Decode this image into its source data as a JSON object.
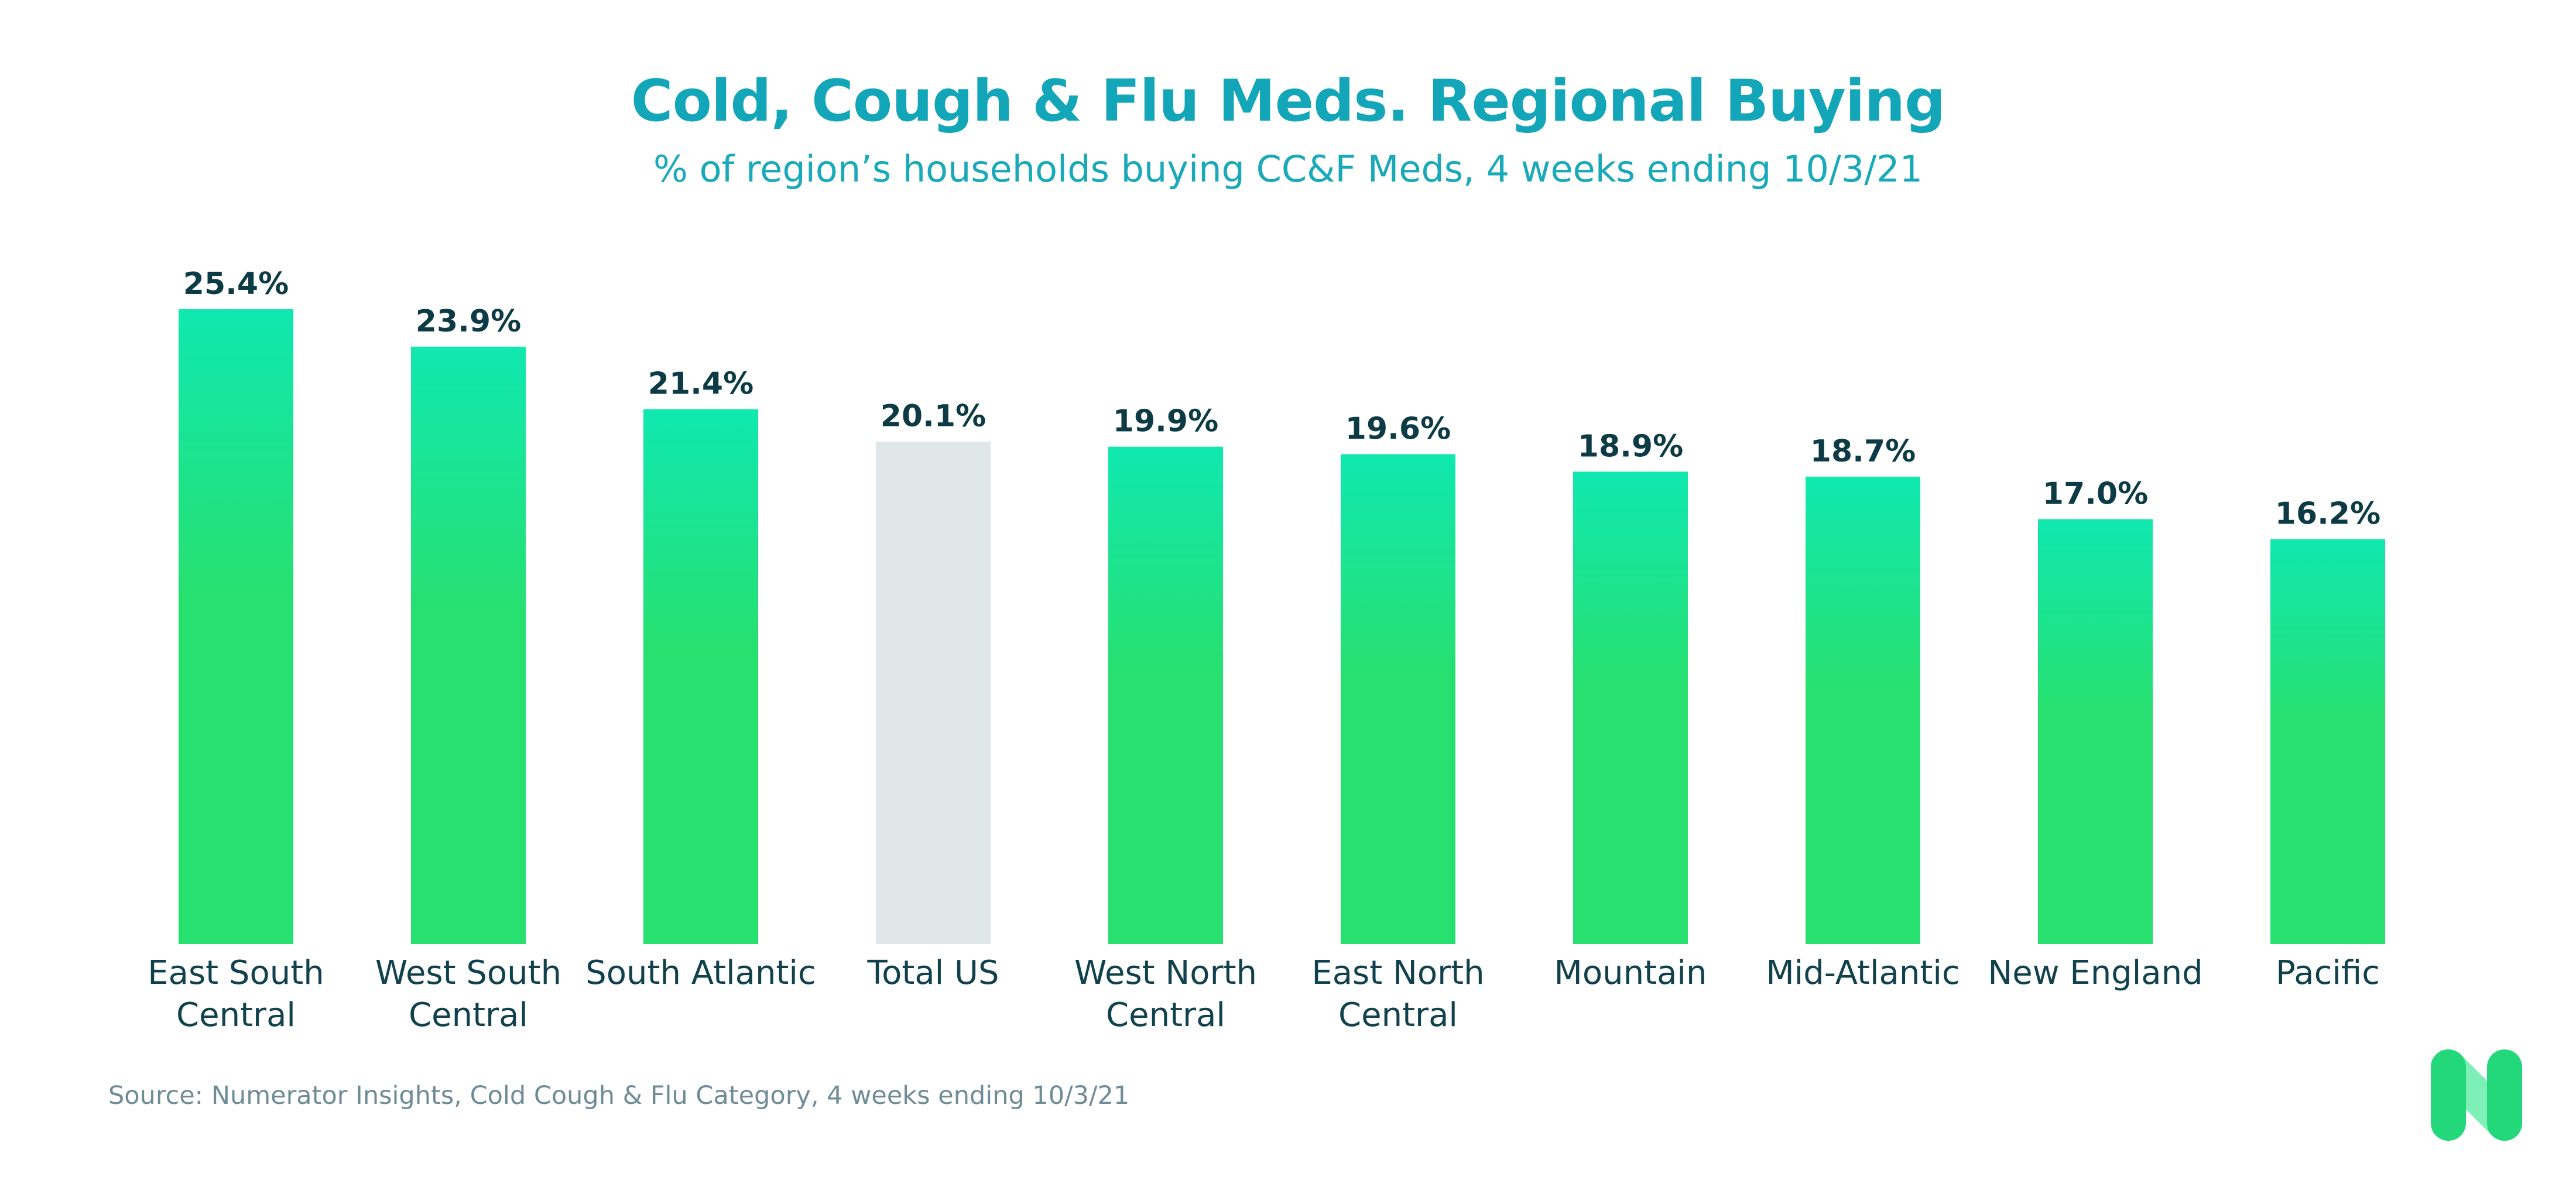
{
  "chart_data": {
    "type": "bar",
    "title": "Cold, Cough & Flu Meds. Regional Buying",
    "subtitle": "% of region’s households buying CC&F Meds, 4 weeks ending 10/3/21",
    "categories": [
      [
        "East South",
        "Central"
      ],
      [
        "West South",
        "Central"
      ],
      [
        "South Atlantic"
      ],
      [
        "Total US"
      ],
      [
        "West North",
        "Central"
      ],
      [
        "East North",
        "Central"
      ],
      [
        "Mountain"
      ],
      [
        "Mid-Atlantic"
      ],
      [
        "New England"
      ],
      [
        "Pacific"
      ]
    ],
    "values": [
      25.4,
      23.9,
      21.4,
      20.1,
      19.9,
      19.6,
      18.9,
      18.7,
      17.0,
      16.2
    ],
    "value_labels": [
      "25.4%",
      "23.9%",
      "21.4%",
      "20.1%",
      "19.9%",
      "19.6%",
      "18.9%",
      "18.7%",
      "17.0%",
      "16.2%"
    ],
    "highlight_category": "Total US",
    "ylim": [
      0,
      25.4
    ],
    "grid": false,
    "legend": "none"
  },
  "source": "Source: Numerator Insights, Cold Cough & Flu Category, 4 weeks ending 10/3/21",
  "colors": {
    "title": "#12a6b8",
    "subtitle": "#19a9b9",
    "bar_top": "#10e8b0",
    "bar_bottom": "#27e070",
    "highlight_bar": "#e0e7e8",
    "value_label": "#0c3b45",
    "category_label": "#10414c",
    "source": "#6f8b96",
    "logo_dark": "#22d87a",
    "logo_light": "#7df0b8"
  },
  "logo": {
    "icon": "numerator-n-logo-icon"
  }
}
